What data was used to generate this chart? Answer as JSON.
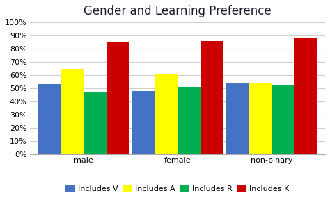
{
  "title": "Gender and Learning Preference",
  "categories": [
    "male",
    "female",
    "non-binary"
  ],
  "series": [
    {
      "label": "Includes V",
      "color": "#4472C4",
      "values": [
        0.53,
        0.48,
        0.54
      ]
    },
    {
      "label": "Includes A",
      "color": "#FFFF00",
      "values": [
        0.65,
        0.61,
        0.54
      ]
    },
    {
      "label": "Includes R",
      "color": "#00B050",
      "values": [
        0.47,
        0.51,
        0.52
      ]
    },
    {
      "label": "Includes K",
      "color": "#CC0000",
      "values": [
        0.85,
        0.86,
        0.88
      ]
    }
  ],
  "ylim": [
    0,
    1.0
  ],
  "yticks": [
    0.0,
    0.1,
    0.2,
    0.3,
    0.4,
    0.5,
    0.6,
    0.7,
    0.8,
    0.9,
    1.0
  ],
  "ytick_labels": [
    "0%",
    "10%",
    "20%",
    "30%",
    "40%",
    "50%",
    "60%",
    "70%",
    "80%",
    "90%",
    "100%"
  ],
  "background_color": "#ffffff",
  "grid_color": "#d0d0d0",
  "title_fontsize": 12,
  "legend_fontsize": 8,
  "tick_fontsize": 8,
  "bar_width": 0.17,
  "group_positions": [
    0.35,
    1.05,
    1.75
  ]
}
